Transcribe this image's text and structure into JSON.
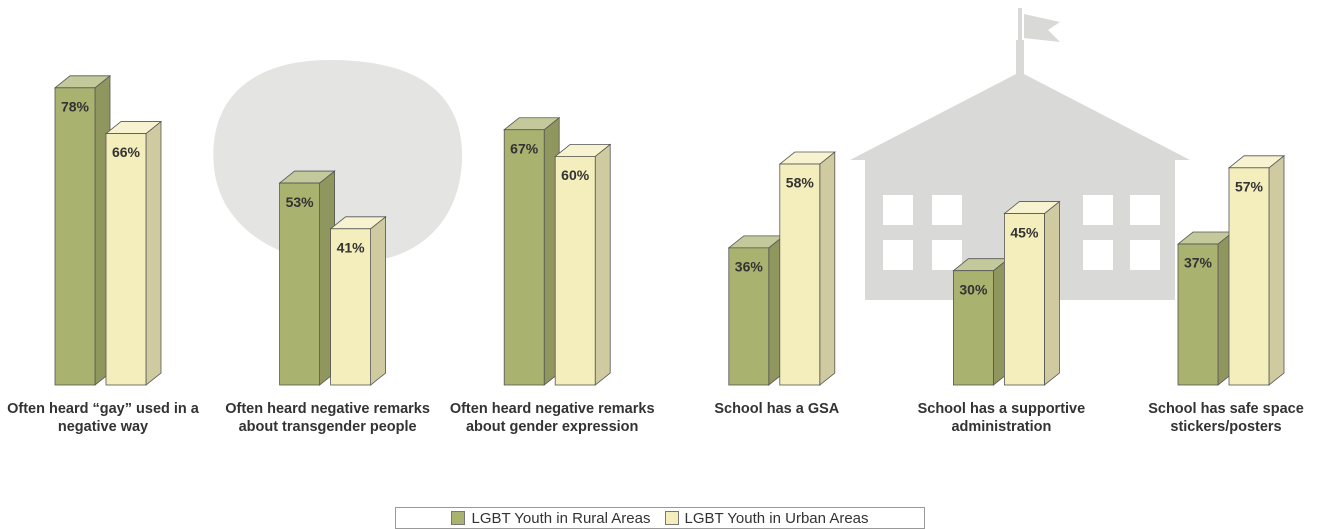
{
  "chart_data": {
    "type": "bar3d",
    "categories": [
      "Often heard “gay” used in a negative way",
      "Often heard negative remarks about transgender people",
      "Often heard negative remarks about gender expression",
      "School has a GSA",
      "School has a supportive administration",
      "School has safe space stickers/posters"
    ],
    "series": [
      {
        "name": "LGBT Youth in Rural Areas",
        "color": "#a9b26f",
        "values": [
          78,
          53,
          67,
          36,
          30,
          37
        ],
        "value_labels": [
          "78%",
          "53%",
          "67%",
          "36%",
          "30%",
          "37%"
        ]
      },
      {
        "name": "LGBT Youth in Urban Areas",
        "color": "#f4eebc",
        "values": [
          66,
          41,
          60,
          58,
          45,
          57
        ],
        "value_labels": [
          "66%",
          "41%",
          "60%",
          "58%",
          "45%",
          "57%"
        ]
      }
    ],
    "ylim": [
      0,
      100
    ]
  }
}
